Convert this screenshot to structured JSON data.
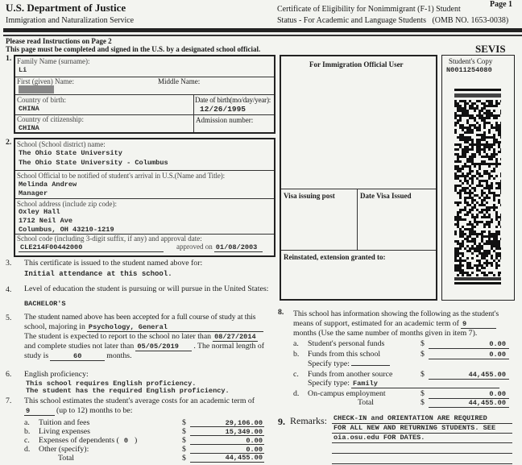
{
  "header": {
    "dept": "U.S. Department of Justice",
    "service": "Immigration and Naturalization Service",
    "form_title_1": "Certificate of Eligibility for Nonimmigrant (F-1) Student",
    "form_title_2": "Status - For Academic and Language Students   (OMB NO. 1653-0038)",
    "page": "Page 1",
    "sevis": "SEVIS"
  },
  "instructions": {
    "line1": "Please read Instructions on Page 2",
    "line2": "This page must be completed and signed in the U.S. by a designated school official."
  },
  "section1": {
    "num": "1.",
    "family_label": "Family Name (surname):",
    "family": "Li",
    "first_label": "First (given) Name:",
    "middle_label": "Middle Name:",
    "birth_country_label": "Country of birth:",
    "birth_country": "CHINA",
    "dob_label": "Date of birth(mo/day/year):",
    "dob": "12/26/1995",
    "citizenship_label": "Country of citizenship:",
    "citizenship": "CHINA",
    "admission_label": "Admission number:"
  },
  "section2": {
    "num": "2.",
    "school_label": "School (School district) name:",
    "school_1": "The Ohio State University",
    "school_2": "The Ohio State University - Columbus",
    "official_label": "School Official to be notified of student's arrival in U.S.(Name and Title):",
    "official_name": "Melinda Andrew",
    "official_title": "Manager",
    "address_label": "School address (include zip code):",
    "address_1": "Oxley Hall",
    "address_2": "1712 Neil Ave",
    "address_3": "Columbus, OH 43210-1219",
    "code_label": "School code (including 3-digit suffix, if any) and approval date:",
    "code": "CLE214F00442000",
    "approved_label": "approved on",
    "approved": "01/08/2003"
  },
  "official_box": {
    "title": "For Immigration Official User",
    "visa_post": "Visa issuing post",
    "visa_date": "Date Visa Issued",
    "reinstated": "Reinstated, extension granted to:"
  },
  "student_copy": {
    "label": "Student's Copy",
    "id": "N0011254080"
  },
  "section3": {
    "num": "3.",
    "text": "This certificate is issued to the student named above for:",
    "value": "Initial attendance at this school."
  },
  "section4": {
    "num": "4.",
    "text": "Level of education the student is pursuing or will pursue in the United States:",
    "value": "BACHELOR'S"
  },
  "section5": {
    "num": "5.",
    "l1": "The student named above has been accepted for a full course of study at this",
    "l2": "school, majoring in",
    "major": "Psychology, General",
    "l3": "The student is expected to report to the school no later than",
    "report": "08/27/2014",
    "l4": "and complete studies not later than",
    "complete": "05/05/2019",
    "l4b": ". The normal length of",
    "l5": "study is",
    "length": "60",
    "l5b": "months."
  },
  "section6": {
    "num": "6.",
    "text": "English proficiency:",
    "v1": "This school requires English proficiency.",
    "v2": "The student has the required English proficiency."
  },
  "section7": {
    "num": "7.",
    "l1": "This school estimates the student's average costs for an academic term of",
    "months": "9",
    "l2": "(up to 12) months to be:",
    "items": [
      {
        "k": "a.",
        "label": "Tuition and fees",
        "value": "29,106.00"
      },
      {
        "k": "b.",
        "label": "Living expenses",
        "value": "15,349.00"
      },
      {
        "k": "c.",
        "label": "Expenses of dependents (",
        "dep": "0",
        "label2": ")",
        "value": "0.00"
      },
      {
        "k": "d.",
        "label": "Other (specify):",
        "value": "0.00"
      }
    ],
    "total_label": "Total",
    "total": "44,455.00",
    "currency": "$"
  },
  "section8": {
    "num": "8.",
    "l1": "This school has information showing the following as the student's",
    "l2": "means of support, estimated for an academic term of",
    "months": "9",
    "l3": "months (Use the same number of months given in item 7).",
    "items": [
      {
        "k": "a.",
        "label": "Student's personal funds",
        "value": "0.00"
      },
      {
        "k": "b.",
        "label": "Funds from this school",
        "value": "0.00"
      },
      {
        "k": "c.",
        "label": "Funds from another source",
        "value": "44,455.00"
      },
      {
        "k": "d.",
        "label": "On-campus employment",
        "value": "0.00"
      }
    ],
    "specify_label": "Specify type:",
    "specify_b": "",
    "specify_c": "Family",
    "total_label": "Total",
    "total": "44,455.00",
    "currency": "$"
  },
  "section9": {
    "num": "9.",
    "label": "Remarks:",
    "r1": "CHECK-IN and ORIENTATION ARE REQUIRED",
    "r2": "FOR ALL NEW AND RETURNING STUDENTS. SEE",
    "r3": "oia.osu.edu FOR DATES."
  }
}
